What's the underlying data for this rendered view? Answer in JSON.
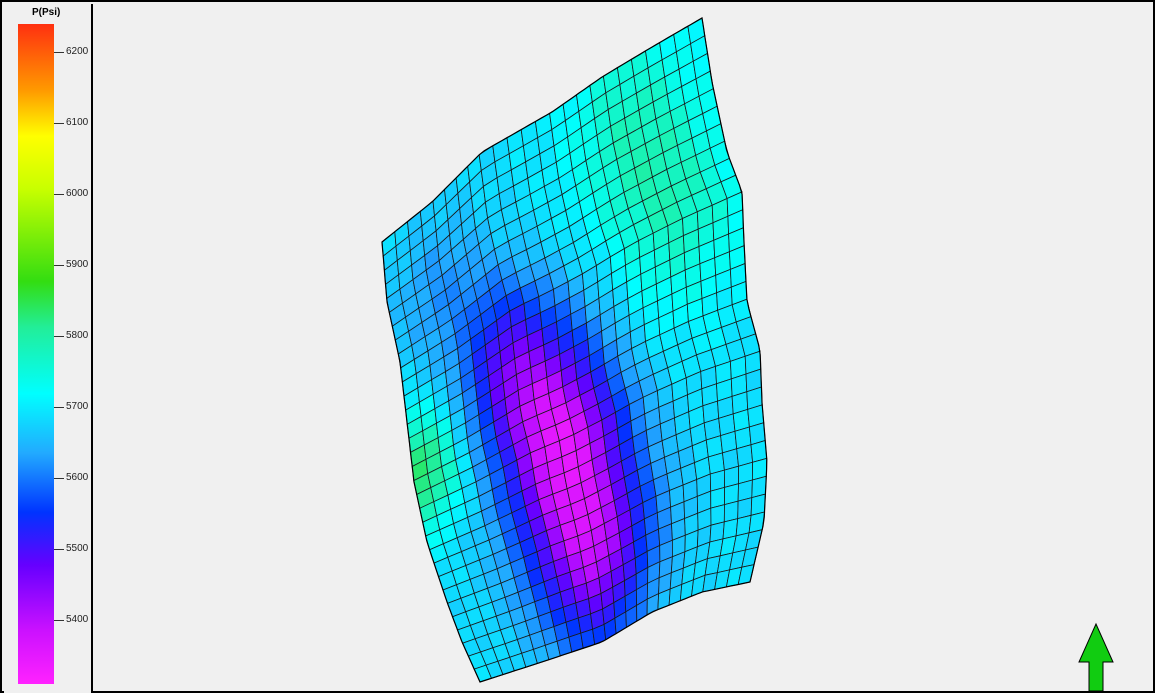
{
  "legend": {
    "title": "P(Psi)",
    "unit": "Psi",
    "min": 5310,
    "max": 6240,
    "ticks": [
      "6200",
      "6100",
      "6000",
      "5900",
      "5800",
      "5700",
      "5600",
      "5500",
      "5400"
    ],
    "stops": [
      {
        "v": 6240,
        "c": "#ff3010"
      },
      {
        "v": 6150,
        "c": "#ff9900"
      },
      {
        "v": 6080,
        "c": "#ffff00"
      },
      {
        "v": 6010,
        "c": "#c8ff00"
      },
      {
        "v": 5880,
        "c": "#33dd11"
      },
      {
        "v": 5810,
        "c": "#22ee99"
      },
      {
        "v": 5720,
        "c": "#00ffff"
      },
      {
        "v": 5640,
        "c": "#22aaff"
      },
      {
        "v": 5550,
        "c": "#0033ff"
      },
      {
        "v": 5470,
        "c": "#6600ff"
      },
      {
        "v": 5390,
        "c": "#cc11ff"
      },
      {
        "v": 5310,
        "c": "#ff22ff"
      }
    ]
  },
  "grid": {
    "cols": 24,
    "rows": 32,
    "low_pressure_zones": [
      {
        "u": 0.42,
        "v": 0.56,
        "r": 0.18,
        "amp": 270
      },
      {
        "u": 0.45,
        "v": 0.82,
        "r": 0.2,
        "amp": 270
      },
      {
        "u": 0.3,
        "v": 0.38,
        "r": 0.14,
        "amp": 150
      },
      {
        "u": 0.15,
        "v": 0.18,
        "r": 0.15,
        "amp": 60
      }
    ],
    "high_pressure_zones": [
      {
        "u": 0.02,
        "v": 0.52,
        "r": 0.12,
        "amp": 150
      },
      {
        "u": 0.82,
        "v": 0.28,
        "r": 0.2,
        "amp": 80
      },
      {
        "u": 0.75,
        "v": 0.07,
        "r": 0.18,
        "amp": 55
      }
    ],
    "base_pressure": 5690
  },
  "north_arrow": {
    "color": "#11cc11"
  },
  "colors": {
    "background": "#f0f0f0",
    "cell_border": "#1a1a1a"
  }
}
